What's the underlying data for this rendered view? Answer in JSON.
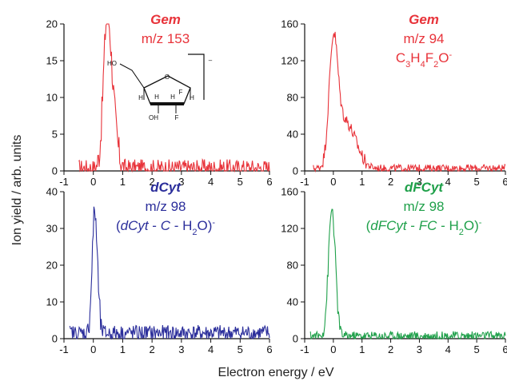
{
  "chart_data": [
    {
      "type": "line",
      "xlim": [
        -1,
        6
      ],
      "ylim": [
        0,
        20
      ],
      "x_ticks": [
        "-1",
        "0",
        "1",
        "2",
        "3",
        "4",
        "5",
        "6"
      ],
      "y_ticks": [
        "0",
        "5",
        "10",
        "15",
        "20"
      ],
      "color": "#e8333a",
      "annotation": {
        "lines": [
          "Gem",
          "m/z 153"
        ]
      },
      "molecule": {
        "labels": [
          "HO",
          "O",
          "H",
          "H",
          "H",
          "H",
          "F",
          "F",
          "OH",
          "–"
        ]
      },
      "baseline": 0.4,
      "peaks": [
        {
          "x": 0.45,
          "y": 16,
          "width": 0.12
        },
        {
          "x": 0.62,
          "y": 9,
          "width": 0.15
        }
      ],
      "noise": 1.2,
      "series": [
        {
          "x_range": [
            -0.5,
            6
          ],
          "points": 280
        }
      ]
    },
    {
      "type": "line",
      "xlim": [
        -1,
        6
      ],
      "ylim": [
        0,
        160
      ],
      "x_ticks": [
        "-1",
        "0",
        "1",
        "2",
        "3",
        "4",
        "5",
        "6"
      ],
      "y_ticks": [
        "0",
        "40",
        "80",
        "120",
        "160"
      ],
      "color": "#e8333a",
      "annotation": {
        "lines": [
          "Gem",
          "m/z 94",
          "C3H4F2O-"
        ]
      },
      "baseline": 3,
      "peaks": [
        {
          "x": 0.0,
          "y": 130,
          "width": 0.15
        },
        {
          "x": 0.35,
          "y": 45,
          "width": 0.25
        },
        {
          "x": 0.75,
          "y": 20,
          "width": 0.25
        }
      ],
      "noise": 4,
      "series": [
        {
          "x_range": [
            -0.7,
            6
          ],
          "points": 300
        }
      ]
    },
    {
      "type": "line",
      "xlim": [
        -1,
        6
      ],
      "ylim": [
        0,
        40
      ],
      "x_ticks": [
        "-1",
        "0",
        "1",
        "2",
        "3",
        "4",
        "5",
        "6"
      ],
      "y_ticks": [
        "0",
        "10",
        "20",
        "30",
        "40"
      ],
      "color": "#2b2e9b",
      "annotation": {
        "lines": [
          "dCyt",
          "m/z 98",
          "(dCyt - C - H2O)-"
        ]
      },
      "baseline": 1.5,
      "peaks": [
        {
          "x": 0.05,
          "y": 33,
          "width": 0.09
        }
      ],
      "noise": 2.2,
      "series": [
        {
          "x_range": [
            -0.8,
            6
          ],
          "points": 300
        }
      ]
    },
    {
      "type": "line",
      "xlim": [
        -1,
        6
      ],
      "ylim": [
        0,
        160
      ],
      "x_ticks": [
        "-1",
        "0",
        "1",
        "2",
        "3",
        "4",
        "5",
        "6"
      ],
      "y_ticks": [
        "0",
        "40",
        "80",
        "120",
        "160"
      ],
      "color": "#1fa04a",
      "annotation": {
        "lines": [
          "dFCyt",
          "m/z 98",
          "(dFCyt - FC - H2O)-"
        ]
      },
      "baseline": 3,
      "peaks": [
        {
          "x": -0.05,
          "y": 138,
          "width": 0.12
        }
      ],
      "noise": 5,
      "series": [
        {
          "x_range": [
            -0.8,
            6
          ],
          "points": 300
        }
      ]
    }
  ],
  "ylabel": "Ion yield / arb. units",
  "xlabel": "Electron energy / eV"
}
